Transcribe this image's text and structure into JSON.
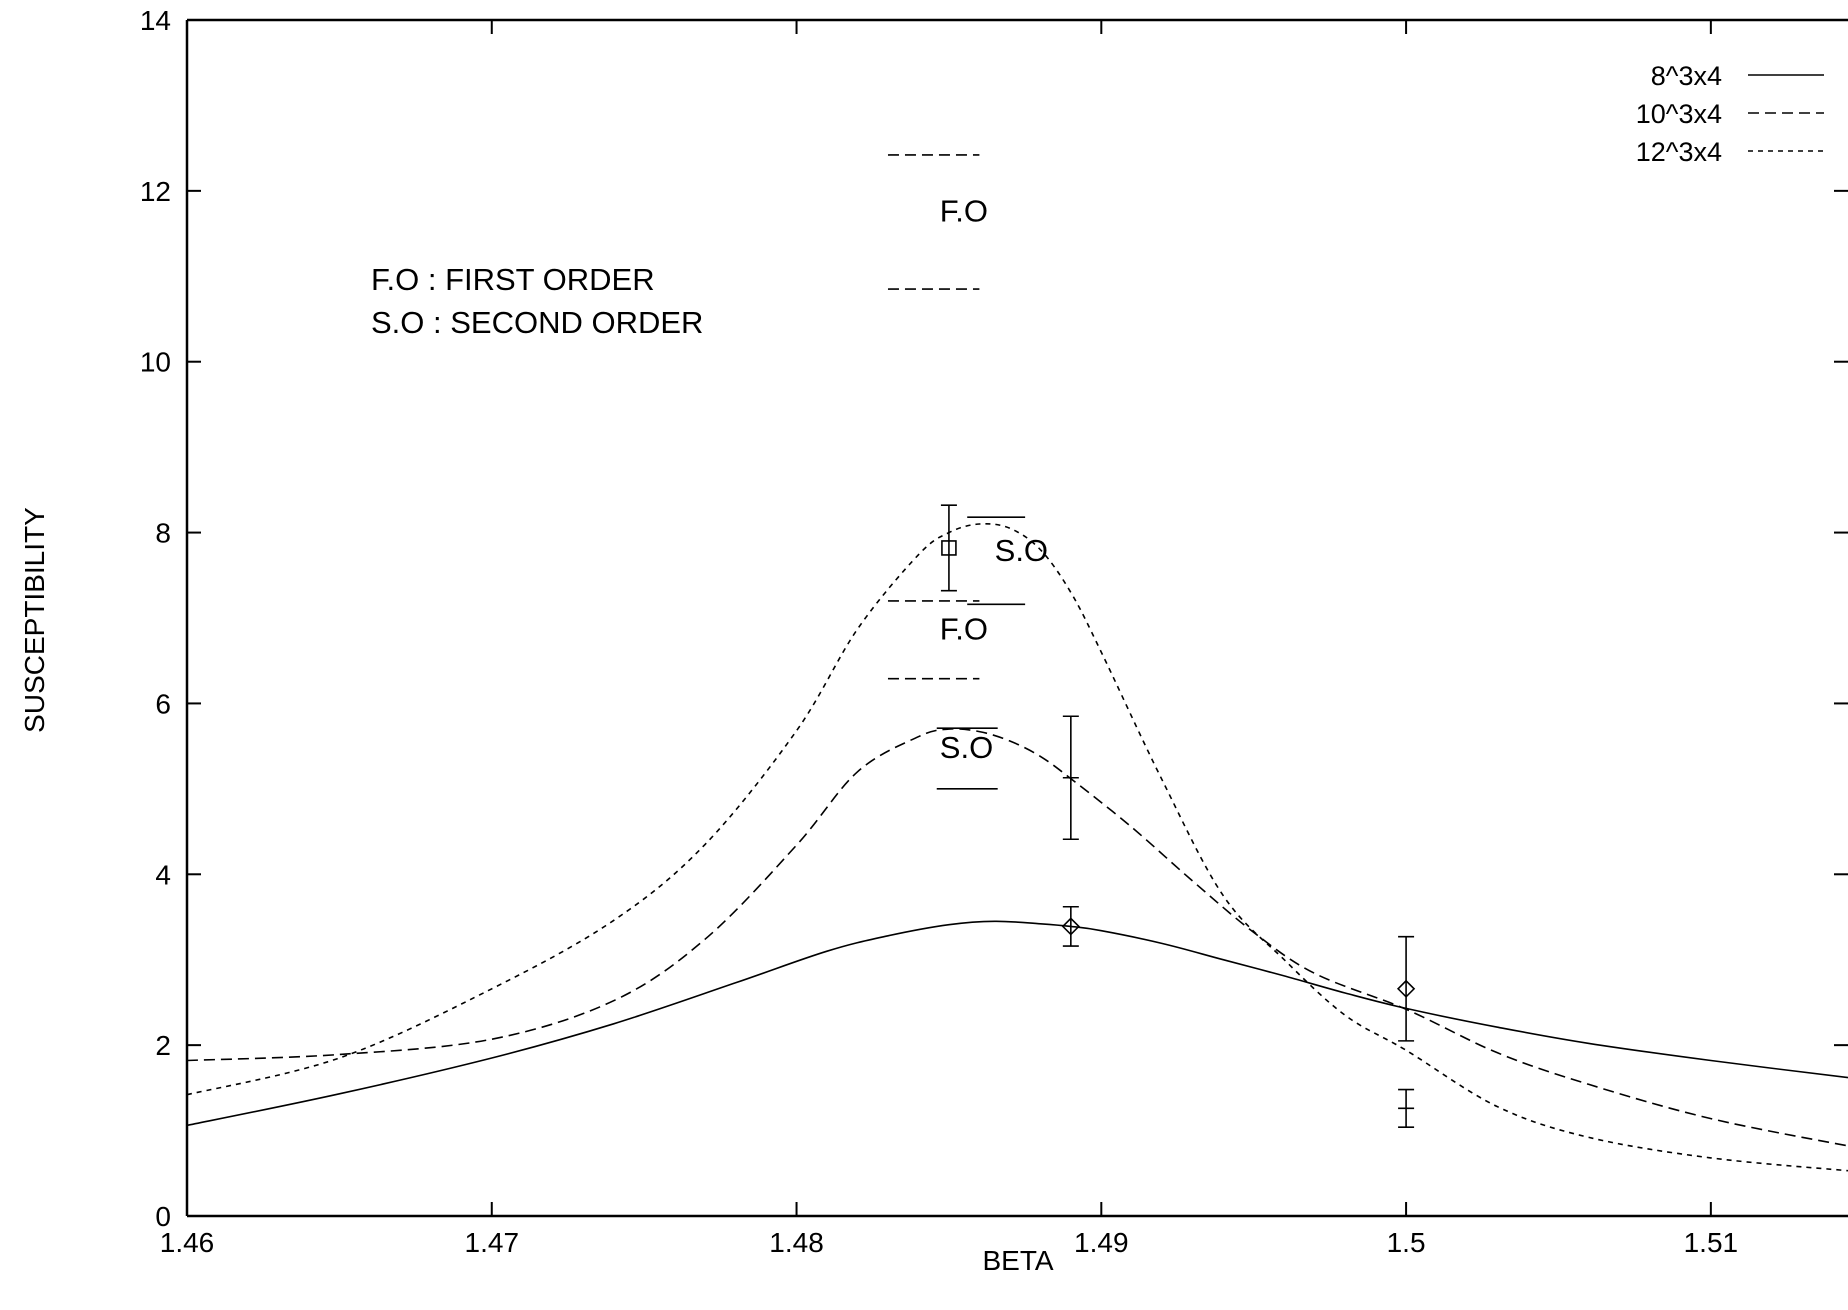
{
  "chart_data": {
    "type": "line",
    "xlabel": "BETA",
    "ylabel": "SUSCEPTIBILITY",
    "xlim": [
      1.46,
      1.5145
    ],
    "ylim": [
      0,
      14
    ],
    "xticks": [
      1.46,
      1.47,
      1.48,
      1.49,
      1.5,
      1.51
    ],
    "xtick_labels": [
      "1.46",
      "1.47",
      "1.48",
      "1.49",
      "1.5",
      "1.51"
    ],
    "yticks": [
      0,
      2,
      4,
      6,
      8,
      10,
      12,
      14
    ],
    "ytick_labels": [
      "0",
      "2",
      "4",
      "6",
      "8",
      "10",
      "12",
      "14"
    ],
    "grid": false,
    "legend_position": "top-right",
    "series": [
      {
        "name": "8^3x4",
        "style": "solid",
        "x": [
          1.46,
          1.465,
          1.47,
          1.474,
          1.478,
          1.481,
          1.483,
          1.485,
          1.4865,
          1.488,
          1.489,
          1.49,
          1.492,
          1.494,
          1.496,
          1.498,
          1.5,
          1.503,
          1.506,
          1.51,
          1.5145
        ],
        "y": [
          1.06,
          1.43,
          1.85,
          2.25,
          2.73,
          3.1,
          3.28,
          3.41,
          3.45,
          3.42,
          3.39,
          3.34,
          3.19,
          3.0,
          2.81,
          2.61,
          2.43,
          2.21,
          2.02,
          1.82,
          1.62
        ]
      },
      {
        "name": "10^3x4",
        "style": "dashed",
        "x": [
          1.46,
          1.465,
          1.47,
          1.474,
          1.477,
          1.48,
          1.482,
          1.484,
          1.485,
          1.486,
          1.487,
          1.488,
          1.489,
          1.491,
          1.493,
          1.495,
          1.497,
          1.5,
          1.503,
          1.506,
          1.51,
          1.5145
        ],
        "y": [
          1.82,
          1.89,
          2.07,
          2.52,
          3.24,
          4.34,
          5.2,
          5.61,
          5.7,
          5.67,
          5.56,
          5.38,
          5.12,
          4.55,
          3.92,
          3.32,
          2.84,
          2.42,
          1.91,
          1.54,
          1.14,
          0.82
        ]
      },
      {
        "name": "12^3x4",
        "style": "dotted",
        "x": [
          1.46,
          1.465,
          1.47,
          1.474,
          1.477,
          1.48,
          1.482,
          1.484,
          1.485,
          1.486,
          1.487,
          1.488,
          1.489,
          1.49,
          1.492,
          1.494,
          1.496,
          1.498,
          1.5,
          1.503,
          1.506,
          1.51,
          1.5145
        ],
        "y": [
          1.42,
          1.85,
          2.66,
          3.46,
          4.35,
          5.68,
          6.87,
          7.74,
          8.0,
          8.1,
          8.05,
          7.8,
          7.3,
          6.6,
          5.1,
          3.75,
          3.0,
          2.35,
          1.94,
          1.28,
          0.92,
          0.68,
          0.53
        ]
      }
    ],
    "data_points": [
      {
        "x": 1.485,
        "y": 7.82,
        "yerr": 0.5,
        "marker": "square"
      },
      {
        "x": 1.489,
        "y": 5.13,
        "yerr": 0.72,
        "marker": "plus"
      },
      {
        "x": 1.489,
        "y": 3.39,
        "yerr": 0.23,
        "marker": "diamond"
      },
      {
        "x": 1.5,
        "y": 2.66,
        "yerr": 0.61,
        "marker": "diamond"
      },
      {
        "x": 1.5,
        "y": 1.26,
        "yerr": 0.22,
        "marker": "plus"
      }
    ],
    "band_lines": [
      {
        "x": [
          1.483,
          1.486
        ],
        "y": 12.42,
        "style": "dashed"
      },
      {
        "x": [
          1.483,
          1.486
        ],
        "y": 10.85,
        "style": "dashed"
      },
      {
        "x": [
          1.4856,
          1.4875
        ],
        "y": 8.18,
        "style": "solid"
      },
      {
        "x": [
          1.4856,
          1.4875
        ],
        "y": 7.16,
        "style": "solid"
      },
      {
        "x": [
          1.483,
          1.486
        ],
        "y": 7.2,
        "style": "dashed"
      },
      {
        "x": [
          1.483,
          1.486
        ],
        "y": 6.29,
        "style": "dashed"
      },
      {
        "x": [
          1.4846,
          1.4866
        ],
        "y": 5.71,
        "style": "solid"
      },
      {
        "x": [
          1.4846,
          1.4866
        ],
        "y": 5.0,
        "style": "solid"
      }
    ],
    "annotations": [
      {
        "text": "F.O",
        "x": 1.4847,
        "y": 11.64
      },
      {
        "text": "S.O",
        "x": 1.4865,
        "y": 7.67
      },
      {
        "text": "F.O",
        "x": 1.4847,
        "y": 6.75
      },
      {
        "text": "S.O",
        "x": 1.4847,
        "y": 5.36
      }
    ],
    "key_text": [
      "F.O : FIRST ORDER",
      "S.O : SECOND ORDER"
    ]
  }
}
